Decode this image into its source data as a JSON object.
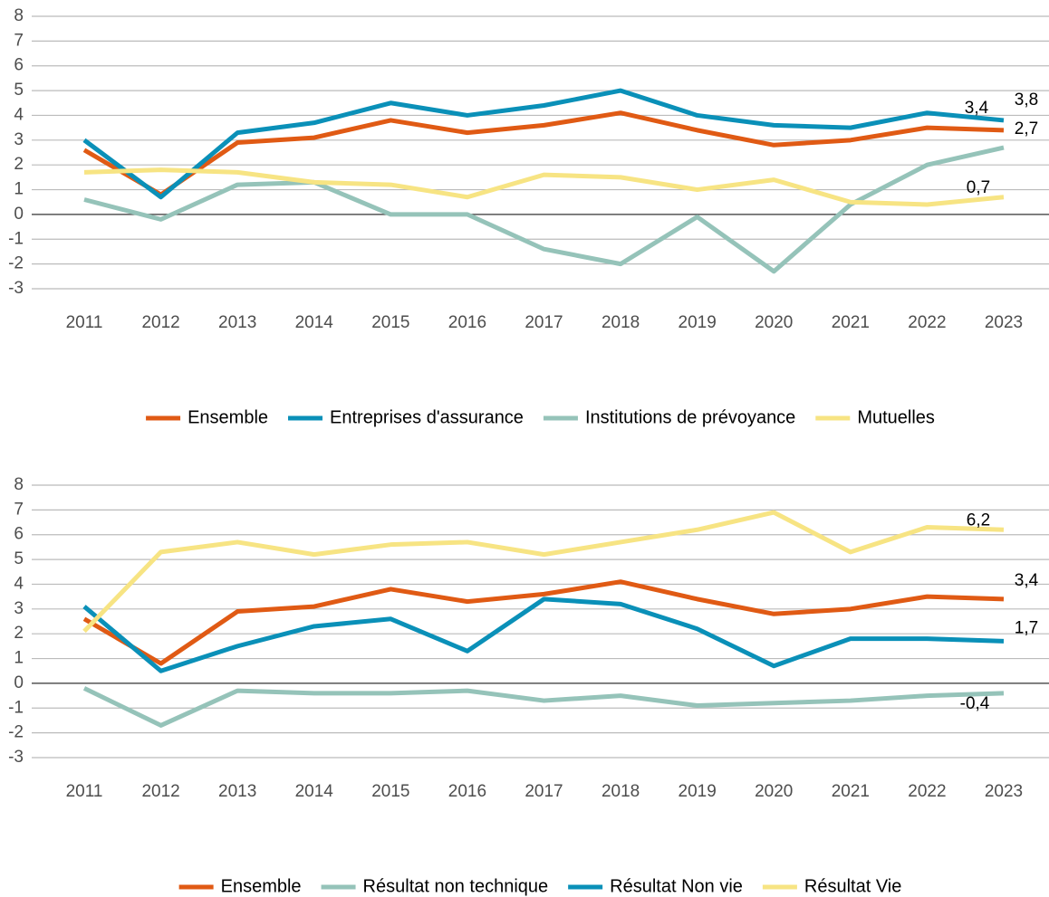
{
  "chart_data": [
    {
      "type": "line",
      "x": [
        "2011",
        "2012",
        "2013",
        "2014",
        "2015",
        "2016",
        "2017",
        "2018",
        "2019",
        "2020",
        "2021",
        "2022",
        "2023"
      ],
      "ylim": [
        -3,
        8
      ],
      "yticks": [
        -3,
        -2,
        -1,
        0,
        1,
        2,
        3,
        4,
        5,
        6,
        7,
        8
      ],
      "grid": true,
      "legend": "bottom",
      "series": [
        {
          "name": "Ensemble",
          "color": "#e05a14",
          "values": [
            2.6,
            0.8,
            2.9,
            3.1,
            3.8,
            3.3,
            3.6,
            4.1,
            3.4,
            2.8,
            3.0,
            3.5,
            3.4
          ],
          "value_labels": [
            null,
            null,
            null,
            null,
            null,
            null,
            null,
            null,
            null,
            null,
            null,
            null,
            "3,4"
          ]
        },
        {
          "name": "Entreprises d'assurance",
          "color": "#0a90b8",
          "values": [
            3.0,
            0.7,
            3.3,
            3.7,
            4.5,
            4.0,
            4.4,
            5.0,
            4.0,
            3.6,
            3.5,
            4.1,
            3.8
          ],
          "value_labels": [
            null,
            null,
            null,
            null,
            null,
            null,
            null,
            null,
            null,
            null,
            null,
            null,
            "3,8"
          ]
        },
        {
          "name": "Institutions de prévoyance",
          "color": "#95c3b9",
          "values": [
            0.6,
            -0.2,
            1.2,
            1.3,
            0.0,
            0.0,
            -1.4,
            -2.0,
            -0.1,
            -2.3,
            0.4,
            2.0,
            2.7
          ],
          "value_labels": [
            null,
            null,
            null,
            null,
            null,
            null,
            null,
            null,
            null,
            null,
            null,
            null,
            "2,7"
          ]
        },
        {
          "name": "Mutuelles",
          "color": "#f7e483",
          "values": [
            1.7,
            1.8,
            1.7,
            1.3,
            1.2,
            0.7,
            1.6,
            1.5,
            1.0,
            1.4,
            0.5,
            0.4,
            0.7
          ],
          "value_labels": [
            null,
            null,
            null,
            null,
            null,
            null,
            null,
            null,
            null,
            null,
            null,
            null,
            "0,7"
          ]
        }
      ]
    },
    {
      "type": "line",
      "x": [
        "2011",
        "2012",
        "2013",
        "2014",
        "2015",
        "2016",
        "2017",
        "2018",
        "2019",
        "2020",
        "2021",
        "2022",
        "2023"
      ],
      "ylim": [
        -3,
        8
      ],
      "yticks": [
        -3,
        -2,
        -1,
        0,
        1,
        2,
        3,
        4,
        5,
        6,
        7,
        8
      ],
      "grid": true,
      "legend": "bottom",
      "series": [
        {
          "name": "Ensemble",
          "color": "#e05a14",
          "values": [
            2.6,
            0.8,
            2.9,
            3.1,
            3.8,
            3.3,
            3.6,
            4.1,
            3.4,
            2.8,
            3.0,
            3.5,
            3.4
          ],
          "value_labels": [
            null,
            null,
            null,
            null,
            null,
            null,
            null,
            null,
            null,
            null,
            null,
            null,
            "3,4"
          ]
        },
        {
          "name": "Résultat non technique",
          "color": "#95c3b9",
          "values": [
            -0.2,
            -1.7,
            -0.3,
            -0.4,
            -0.4,
            -0.3,
            -0.7,
            -0.5,
            -0.9,
            -0.8,
            -0.7,
            -0.5,
            -0.4
          ],
          "value_labels": [
            null,
            null,
            null,
            null,
            null,
            null,
            null,
            null,
            null,
            null,
            null,
            null,
            "-0,4"
          ]
        },
        {
          "name": "Résultat Non vie",
          "color": "#0a90b8",
          "values": [
            3.1,
            0.5,
            1.5,
            2.3,
            2.6,
            1.3,
            3.4,
            3.2,
            2.2,
            0.7,
            1.8,
            1.8,
            1.7
          ],
          "value_labels": [
            null,
            null,
            null,
            null,
            null,
            null,
            null,
            null,
            null,
            null,
            null,
            null,
            "1,7"
          ]
        },
        {
          "name": "Résultat Vie",
          "color": "#f7e483",
          "values": [
            2.1,
            5.3,
            5.7,
            5.2,
            5.6,
            5.7,
            5.2,
            5.7,
            6.2,
            6.9,
            5.3,
            6.3,
            6.2
          ],
          "value_labels": [
            null,
            null,
            null,
            null,
            null,
            null,
            null,
            null,
            null,
            null,
            null,
            null,
            "6,2"
          ]
        }
      ]
    }
  ]
}
